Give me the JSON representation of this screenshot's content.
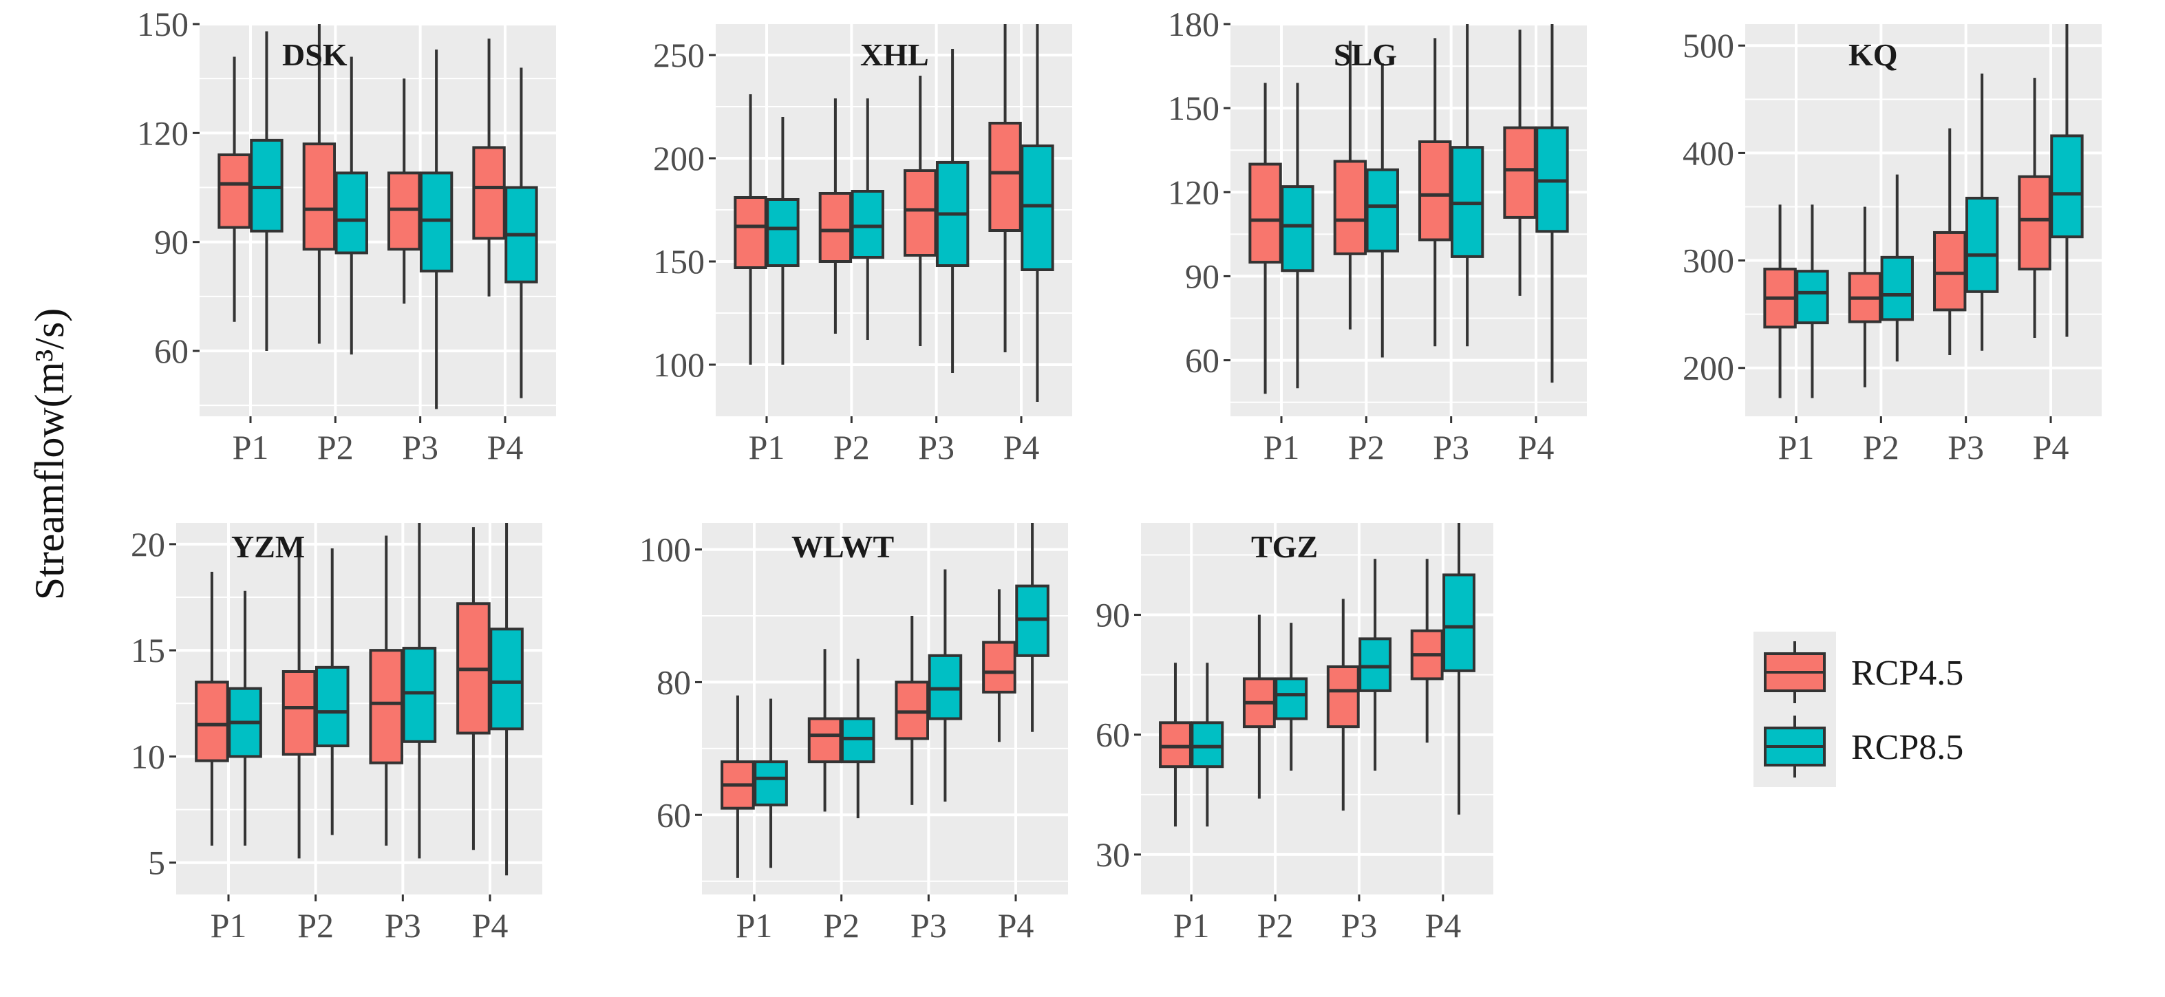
{
  "chart_data": {
    "type": "box",
    "ylabel": "Streamflow(m³/s)",
    "categories": [
      "P1",
      "P2",
      "P3",
      "P4"
    ],
    "series_names": [
      "RCP4.5",
      "RCP8.5"
    ],
    "colors": {
      "RCP4.5": "#F8766D",
      "RCP8.5": "#00BFC4",
      "panel_bg": "#EBEBEB",
      "grid": "#FFFFFF"
    },
    "legend": {
      "position": "right",
      "entries": [
        "RCP4.5",
        "RCP8.5"
      ]
    },
    "panels": [
      {
        "title": "DSK",
        "ylim": [
          42,
          150
        ],
        "yticks": [
          60,
          90,
          120,
          150
        ],
        "boxes": [
          {
            "period": "P1",
            "series": "RCP4.5",
            "min": 68,
            "q1": 94,
            "median": 106,
            "q3": 114,
            "max": 141
          },
          {
            "period": "P1",
            "series": "RCP8.5",
            "min": 60,
            "q1": 93,
            "median": 105,
            "q3": 118,
            "max": 148
          },
          {
            "period": "P2",
            "series": "RCP4.5",
            "min": 62,
            "q1": 88,
            "median": 99,
            "q3": 117,
            "max": 150
          },
          {
            "period": "P2",
            "series": "RCP8.5",
            "min": 59,
            "q1": 87,
            "median": 96,
            "q3": 109,
            "max": 141
          },
          {
            "period": "P3",
            "series": "RCP4.5",
            "min": 73,
            "q1": 88,
            "median": 99,
            "q3": 109,
            "max": 135
          },
          {
            "period": "P3",
            "series": "RCP8.5",
            "min": 44,
            "q1": 82,
            "median": 96,
            "q3": 109,
            "max": 143
          },
          {
            "period": "P4",
            "series": "RCP4.5",
            "min": 75,
            "q1": 91,
            "median": 105,
            "q3": 116,
            "max": 146
          },
          {
            "period": "P4",
            "series": "RCP8.5",
            "min": 47,
            "q1": 79,
            "median": 92,
            "q3": 105,
            "max": 138
          }
        ]
      },
      {
        "title": "XHL",
        "ylim": [
          75,
          265
        ],
        "yticks": [
          100,
          150,
          200,
          250
        ],
        "boxes": [
          {
            "period": "P1",
            "series": "RCP4.5",
            "min": 100,
            "q1": 147,
            "median": 167,
            "q3": 181,
            "max": 231
          },
          {
            "period": "P1",
            "series": "RCP8.5",
            "min": 100,
            "q1": 148,
            "median": 166,
            "q3": 180,
            "max": 220
          },
          {
            "period": "P2",
            "series": "RCP4.5",
            "min": 115,
            "q1": 150,
            "median": 165,
            "q3": 183,
            "max": 229
          },
          {
            "period": "P2",
            "series": "RCP8.5",
            "min": 112,
            "q1": 152,
            "median": 167,
            "q3": 184,
            "max": 229
          },
          {
            "period": "P3",
            "series": "RCP4.5",
            "min": 109,
            "q1": 153,
            "median": 175,
            "q3": 194,
            "max": 240
          },
          {
            "period": "P3",
            "series": "RCP8.5",
            "min": 96,
            "q1": 148,
            "median": 173,
            "q3": 198,
            "max": 253
          },
          {
            "period": "P4",
            "series": "RCP4.5",
            "min": 106,
            "q1": 165,
            "median": 193,
            "q3": 217,
            "max": 265
          },
          {
            "period": "P4",
            "series": "RCP8.5",
            "min": 82,
            "q1": 146,
            "median": 177,
            "q3": 206,
            "max": 265
          }
        ]
      },
      {
        "title": "SLG",
        "ylim": [
          40,
          180
        ],
        "yticks": [
          60,
          90,
          120,
          150,
          180
        ],
        "boxes": [
          {
            "period": "P1",
            "series": "RCP4.5",
            "min": 48,
            "q1": 95,
            "median": 110,
            "q3": 130,
            "max": 159
          },
          {
            "period": "P1",
            "series": "RCP8.5",
            "min": 50,
            "q1": 92,
            "median": 108,
            "q3": 122,
            "max": 159
          },
          {
            "period": "P2",
            "series": "RCP4.5",
            "min": 71,
            "q1": 98,
            "median": 110,
            "q3": 131,
            "max": 174
          },
          {
            "period": "P2",
            "series": "RCP8.5",
            "min": 61,
            "q1": 99,
            "median": 115,
            "q3": 128,
            "max": 166
          },
          {
            "period": "P3",
            "series": "RCP4.5",
            "min": 65,
            "q1": 103,
            "median": 119,
            "q3": 138,
            "max": 175
          },
          {
            "period": "P3",
            "series": "RCP8.5",
            "min": 65,
            "q1": 97,
            "median": 116,
            "q3": 136,
            "max": 180
          },
          {
            "period": "P4",
            "series": "RCP4.5",
            "min": 83,
            "q1": 111,
            "median": 128,
            "q3": 143,
            "max": 178
          },
          {
            "period": "P4",
            "series": "RCP8.5",
            "min": 52,
            "q1": 106,
            "median": 124,
            "q3": 143,
            "max": 180
          }
        ]
      },
      {
        "title": "KQ",
        "ylim": [
          155,
          520
        ],
        "yticks": [
          200,
          300,
          400,
          500
        ],
        "boxes": [
          {
            "period": "P1",
            "series": "RCP4.5",
            "min": 172,
            "q1": 238,
            "median": 265,
            "q3": 292,
            "max": 352
          },
          {
            "period": "P1",
            "series": "RCP8.5",
            "min": 172,
            "q1": 242,
            "median": 270,
            "q3": 290,
            "max": 352
          },
          {
            "period": "P2",
            "series": "RCP4.5",
            "min": 182,
            "q1": 243,
            "median": 265,
            "q3": 288,
            "max": 350
          },
          {
            "period": "P2",
            "series": "RCP8.5",
            "min": 206,
            "q1": 245,
            "median": 268,
            "q3": 303,
            "max": 380
          },
          {
            "period": "P3",
            "series": "RCP4.5",
            "min": 212,
            "q1": 254,
            "median": 288,
            "q3": 326,
            "max": 423
          },
          {
            "period": "P3",
            "series": "RCP8.5",
            "min": 216,
            "q1": 271,
            "median": 305,
            "q3": 358,
            "max": 474
          },
          {
            "period": "P4",
            "series": "RCP4.5",
            "min": 228,
            "q1": 292,
            "median": 338,
            "q3": 378,
            "max": 470
          },
          {
            "period": "P4",
            "series": "RCP8.5",
            "min": 229,
            "q1": 322,
            "median": 362,
            "q3": 416,
            "max": 520
          }
        ]
      },
      {
        "title": "YZM",
        "ylim": [
          3.5,
          21
        ],
        "yticks": [
          5,
          10,
          15,
          20
        ],
        "boxes": [
          {
            "period": "P1",
            "series": "RCP4.5",
            "min": 5.8,
            "q1": 9.8,
            "median": 11.5,
            "q3": 13.5,
            "max": 18.7
          },
          {
            "period": "P1",
            "series": "RCP8.5",
            "min": 5.8,
            "q1": 10.0,
            "median": 11.6,
            "q3": 13.2,
            "max": 17.8
          },
          {
            "period": "P2",
            "series": "RCP4.5",
            "min": 5.2,
            "q1": 10.1,
            "median": 12.3,
            "q3": 14.0,
            "max": 20.0
          },
          {
            "period": "P2",
            "series": "RCP8.5",
            "min": 6.3,
            "q1": 10.5,
            "median": 12.1,
            "q3": 14.2,
            "max": 19.8
          },
          {
            "period": "P3",
            "series": "RCP4.5",
            "min": 5.8,
            "q1": 9.7,
            "median": 12.5,
            "q3": 15.0,
            "max": 20.4
          },
          {
            "period": "P3",
            "series": "RCP8.5",
            "min": 5.2,
            "q1": 10.7,
            "median": 13.0,
            "q3": 15.1,
            "max": 21.0
          },
          {
            "period": "P4",
            "series": "RCP4.5",
            "min": 5.6,
            "q1": 11.1,
            "median": 14.1,
            "q3": 17.2,
            "max": 20.8
          },
          {
            "period": "P4",
            "series": "RCP8.5",
            "min": 4.4,
            "q1": 11.3,
            "median": 13.5,
            "q3": 16.0,
            "max": 21.0
          }
        ]
      },
      {
        "title": "WLWT",
        "ylim": [
          48,
          104
        ],
        "yticks": [
          60,
          80,
          100
        ],
        "boxes": [
          {
            "period": "P1",
            "series": "RCP4.5",
            "min": 50.5,
            "q1": 61.0,
            "median": 64.5,
            "q3": 68.0,
            "max": 78.0
          },
          {
            "period": "P1",
            "series": "RCP8.5",
            "min": 52.0,
            "q1": 61.5,
            "median": 65.5,
            "q3": 68.0,
            "max": 77.5
          },
          {
            "period": "P2",
            "series": "RCP4.5",
            "min": 60.5,
            "q1": 68.0,
            "median": 72.0,
            "q3": 74.5,
            "max": 85.0
          },
          {
            "period": "P2",
            "series": "RCP8.5",
            "min": 59.5,
            "q1": 68.0,
            "median": 71.5,
            "q3": 74.5,
            "max": 83.5
          },
          {
            "period": "P3",
            "series": "RCP4.5",
            "min": 61.5,
            "q1": 71.5,
            "median": 75.5,
            "q3": 80.0,
            "max": 90.0
          },
          {
            "period": "P3",
            "series": "RCP8.5",
            "min": 62.0,
            "q1": 74.5,
            "median": 79.0,
            "q3": 84.0,
            "max": 97.0
          },
          {
            "period": "P4",
            "series": "RCP4.5",
            "min": 71.0,
            "q1": 78.5,
            "median": 81.5,
            "q3": 86.0,
            "max": 94.0
          },
          {
            "period": "P4",
            "series": "RCP8.5",
            "min": 72.5,
            "q1": 84.0,
            "median": 89.5,
            "q3": 94.5,
            "max": 104.0
          }
        ]
      },
      {
        "title": "TGZ",
        "ylim": [
          20,
          113
        ],
        "yticks": [
          30,
          60,
          90
        ],
        "boxes": [
          {
            "period": "P1",
            "series": "RCP4.5",
            "min": 37,
            "q1": 52,
            "median": 57,
            "q3": 63,
            "max": 78
          },
          {
            "period": "P1",
            "series": "RCP8.5",
            "min": 37,
            "q1": 52,
            "median": 57,
            "q3": 63,
            "max": 78
          },
          {
            "period": "P2",
            "series": "RCP4.5",
            "min": 44,
            "q1": 62,
            "median": 68,
            "q3": 74,
            "max": 90
          },
          {
            "period": "P2",
            "series": "RCP8.5",
            "min": 51,
            "q1": 64,
            "median": 70,
            "q3": 74,
            "max": 88
          },
          {
            "period": "P3",
            "series": "RCP4.5",
            "min": 41,
            "q1": 62,
            "median": 71,
            "q3": 77,
            "max": 94
          },
          {
            "period": "P3",
            "series": "RCP8.5",
            "min": 51,
            "q1": 71,
            "median": 77,
            "q3": 84,
            "max": 104
          },
          {
            "period": "P4",
            "series": "RCP4.5",
            "min": 58,
            "q1": 74,
            "median": 80,
            "q3": 86,
            "max": 104
          },
          {
            "period": "P4",
            "series": "RCP8.5",
            "min": 40,
            "q1": 76,
            "median": 87,
            "q3": 100,
            "max": 113
          }
        ]
      }
    ]
  }
}
